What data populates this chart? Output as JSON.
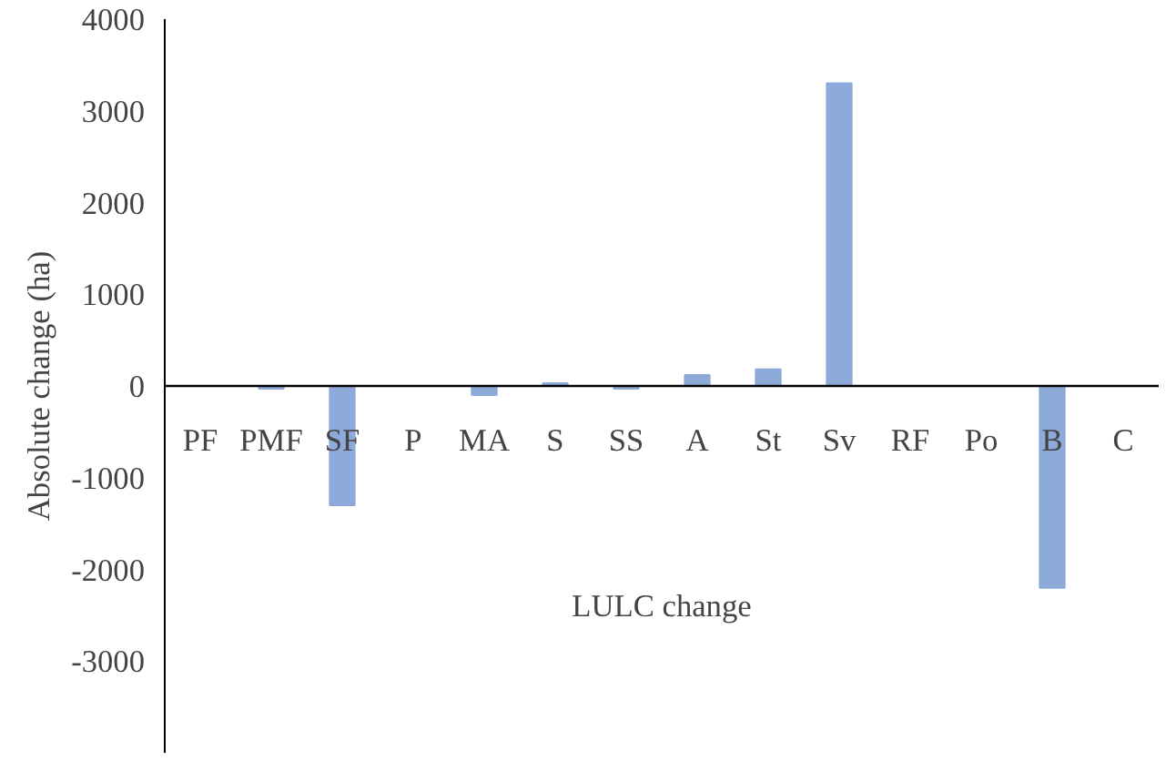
{
  "chart_data": {
    "type": "bar",
    "xlabel": "LULC change",
    "ylabel": "Absolute change (ha)",
    "categories": [
      "PF",
      "PMF",
      "SF",
      "P",
      "MA",
      "S",
      "SS",
      "A",
      "St",
      "Sv",
      "RF",
      "Po",
      "B",
      "C"
    ],
    "values": [
      0,
      -30,
      -1300,
      0,
      -100,
      30,
      -30,
      120,
      180,
      3300,
      0,
      0,
      -2200,
      0
    ],
    "color": "#8eaadb",
    "ylim": [
      -4000,
      4000
    ],
    "yticks": [
      -3000,
      -2000,
      -1000,
      0,
      1000,
      2000,
      3000,
      4000
    ],
    "grid": false
  }
}
